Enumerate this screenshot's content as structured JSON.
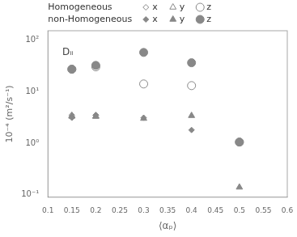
{
  "chart_data": {
    "type": "scatter",
    "x_label": "⟨αₚ⟩",
    "y_label": "10⁻⁴ (m²/s⁻¹)",
    "log": "y",
    "grid": false,
    "legend": "top",
    "xlim": [
      0.1,
      0.6
    ],
    "ylim": [
      0.09,
      150
    ],
    "xticks": [
      0.1,
      0.15,
      0.2,
      0.25,
      0.3,
      0.35,
      0.4,
      0.45,
      0.5,
      0.55,
      0.6
    ],
    "yticks": [
      {
        "value": 0.1,
        "label": "10⁻¹"
      },
      {
        "value": 1,
        "label": "10⁰"
      },
      {
        "value": 10,
        "label": "10¹"
      },
      {
        "value": 100,
        "label": "10²"
      }
    ],
    "annotations": [
      {
        "text": "Dᵢᵢ",
        "x": 0.13,
        "y": 70
      }
    ],
    "series": [
      {
        "name": "x",
        "group": "Homogeneous",
        "color": "#888888",
        "marker": "diamond-open",
        "x": [
          0.15,
          0.2
        ],
        "values": [
          3.5,
          3.5
        ]
      },
      {
        "name": "y",
        "group": "Homogeneous",
        "color": "#888888",
        "marker": "triangle-open",
        "x": [
          0.15,
          0.2
        ],
        "values": [
          3.3,
          3.3
        ]
      },
      {
        "name": "z",
        "group": "Homogeneous",
        "color": "#888888",
        "marker": "circle-open",
        "x": [
          0.15,
          0.2,
          0.3,
          0.4,
          0.5
        ],
        "values": [
          27,
          30,
          14,
          13,
          1.05
        ]
      },
      {
        "name": "x",
        "group": "non-Homogeneous",
        "color": "#888888",
        "marker": "diamond",
        "x": [
          0.15,
          0.2,
          0.3,
          0.4
        ],
        "values": [
          3.1,
          3.5,
          3.1,
          1.8
        ]
      },
      {
        "name": "y",
        "group": "non-Homogeneous",
        "color": "#888888",
        "marker": "triangle",
        "x": [
          0.15,
          0.2,
          0.3,
          0.4,
          0.5
        ],
        "values": [
          3.4,
          3.3,
          3.0,
          3.4,
          0.14
        ]
      },
      {
        "name": "z",
        "group": "non-Homogeneous",
        "color": "#888888",
        "marker": "circle",
        "x": [
          0.15,
          0.2,
          0.3,
          0.4,
          0.5
        ],
        "values": [
          27,
          32,
          57,
          36,
          1.05
        ]
      }
    ]
  }
}
